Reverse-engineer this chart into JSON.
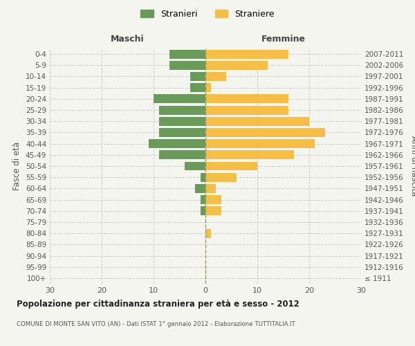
{
  "age_groups": [
    "100+",
    "95-99",
    "90-94",
    "85-89",
    "80-84",
    "75-79",
    "70-74",
    "65-69",
    "60-64",
    "55-59",
    "50-54",
    "45-49",
    "40-44",
    "35-39",
    "30-34",
    "25-29",
    "20-24",
    "15-19",
    "10-14",
    "5-9",
    "0-4"
  ],
  "birth_years": [
    "≤ 1911",
    "1912-1916",
    "1917-1921",
    "1922-1926",
    "1927-1931",
    "1932-1936",
    "1937-1941",
    "1942-1946",
    "1947-1951",
    "1952-1956",
    "1957-1961",
    "1962-1966",
    "1967-1971",
    "1972-1976",
    "1977-1981",
    "1982-1986",
    "1987-1991",
    "1992-1996",
    "1997-2001",
    "2002-2006",
    "2007-2011"
  ],
  "males": [
    0,
    0,
    0,
    0,
    0,
    0,
    1,
    1,
    2,
    1,
    4,
    9,
    11,
    9,
    9,
    9,
    10,
    3,
    3,
    7,
    7
  ],
  "females": [
    0,
    0,
    0,
    0,
    1,
    0,
    3,
    3,
    2,
    6,
    10,
    17,
    21,
    23,
    20,
    16,
    16,
    1,
    4,
    12,
    16
  ],
  "male_color": "#6a9a5a",
  "female_color": "#f5bf45",
  "male_label": "Stranieri",
  "female_label": "Straniere",
  "title": "Popolazione per cittadinanza straniera per età e sesso - 2012",
  "subtitle": "COMUNE DI MONTE SAN VITO (AN) - Dati ISTAT 1° gennaio 2012 - Elaborazione TUTTITALIA.IT",
  "xlabel_left": "Maschi",
  "xlabel_right": "Femmine",
  "ylabel_left": "Fasce di età",
  "ylabel_right": "Anni di nascita",
  "xlim": 30,
  "background_color": "#f5f5f0",
  "grid_color": "#cccccc",
  "bar_height": 0.8
}
